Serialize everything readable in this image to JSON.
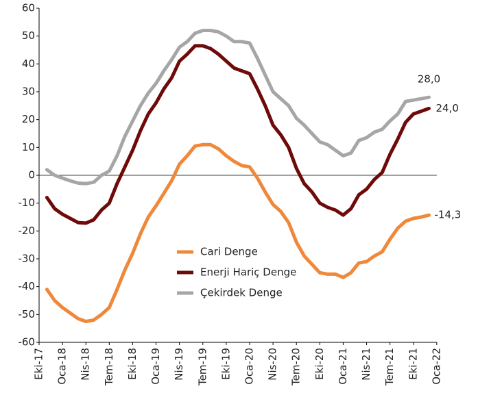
{
  "chart_data": {
    "type": "line",
    "categories": [
      "Eki-17",
      null,
      null,
      "Oca-18",
      null,
      null,
      "Nis-18",
      null,
      null,
      "Tem-18",
      null,
      null,
      "Eki-18",
      null,
      null,
      "Oca-19",
      null,
      null,
      "Nis-19",
      null,
      null,
      "Tem-19",
      null,
      null,
      "Eki-19",
      null,
      null,
      "Oca-20",
      null,
      null,
      "Nis-20",
      null,
      null,
      "Tem-20",
      null,
      null,
      "Eki-20",
      null,
      null,
      "Oca-21",
      null,
      null,
      "Nis-21",
      null,
      null,
      "Tem-21",
      null,
      null,
      "Eki-21",
      null,
      null,
      "Oca-22"
    ],
    "series": [
      {
        "name": "Cari Denge",
        "color": "#f0883a",
        "values": [
          null,
          -41,
          -45,
          -47.5,
          -49.5,
          -51.5,
          -52.5,
          -52,
          -50,
          -47.5,
          -41,
          -34,
          -28,
          -21,
          -15,
          -11,
          -6.5,
          -2,
          4,
          7,
          10.5,
          11,
          11,
          9.5,
          7,
          5,
          3.5,
          3,
          -1,
          -6,
          -10.5,
          -13,
          -17,
          -24,
          -29,
          -32,
          -35,
          -35.5,
          -35.5,
          -36.7,
          -35,
          -31.5,
          -31,
          -29,
          -27.5,
          -23,
          -19,
          -16.5,
          -15.5,
          -15,
          -14.3,
          null
        ],
        "value_labels": [
          null,
          null,
          null,
          null,
          null,
          null,
          null,
          null,
          null,
          null,
          null,
          null,
          null,
          null,
          null,
          null,
          null,
          null,
          null,
          null,
          null,
          null,
          null,
          null,
          null,
          null,
          null,
          null,
          null,
          null,
          null,
          null,
          null,
          null,
          null,
          null,
          null,
          null,
          null,
          null,
          null,
          null,
          null,
          null,
          null,
          null,
          null,
          null,
          null,
          null,
          "-14,3",
          null
        ]
      },
      {
        "name": "Enerji Hariç Denge",
        "color": "#6e0a0a",
        "values": [
          null,
          -8,
          -12,
          -14,
          -15.5,
          -17,
          -17.2,
          -16,
          -12.5,
          -10,
          -3,
          3,
          9,
          16,
          22,
          26,
          31,
          35,
          41,
          43.5,
          46.5,
          46.5,
          45.5,
          43.5,
          41,
          38.5,
          37.5,
          36.5,
          31,
          25,
          18,
          14.5,
          10,
          2.5,
          -3,
          -6,
          -10,
          -11.5,
          -12.5,
          -14.3,
          -12,
          -7,
          -5,
          -1.5,
          1,
          7.5,
          13,
          19,
          22,
          23,
          24,
          null
        ],
        "value_labels": [
          null,
          null,
          null,
          null,
          null,
          null,
          null,
          null,
          null,
          null,
          null,
          null,
          null,
          null,
          null,
          null,
          null,
          null,
          null,
          null,
          null,
          null,
          null,
          null,
          null,
          null,
          null,
          null,
          null,
          null,
          null,
          null,
          null,
          null,
          null,
          null,
          null,
          null,
          null,
          null,
          null,
          null,
          null,
          null,
          null,
          null,
          null,
          null,
          null,
          null,
          "24,0",
          null
        ]
      },
      {
        "name": "Çekirdek Denge",
        "color": "#a6a6a6",
        "values": [
          null,
          2,
          0,
          -1,
          -2,
          -2.8,
          -3,
          -2.5,
          0,
          1.5,
          7,
          14,
          19.5,
          25,
          29.5,
          33,
          37.5,
          41.5,
          46,
          48,
          51,
          52,
          52,
          51.5,
          50,
          48,
          48,
          47.5,
          42,
          36,
          30,
          27.5,
          25,
          20.5,
          18,
          15,
          12,
          11,
          9,
          7,
          8,
          12.5,
          13.5,
          15.5,
          16.5,
          19.5,
          22,
          26.5,
          27,
          27.5,
          28,
          null
        ],
        "value_labels": [
          null,
          null,
          null,
          null,
          null,
          null,
          null,
          null,
          null,
          null,
          null,
          null,
          null,
          null,
          null,
          null,
          null,
          null,
          null,
          null,
          null,
          null,
          null,
          null,
          null,
          null,
          null,
          null,
          null,
          null,
          null,
          null,
          null,
          null,
          null,
          null,
          null,
          null,
          null,
          null,
          null,
          null,
          null,
          null,
          null,
          null,
          null,
          null,
          null,
          null,
          "28,0",
          null
        ]
      }
    ],
    "ylim": [
      -60,
      60
    ],
    "yticks": [
      -60,
      -50,
      -40,
      -30,
      -20,
      -10,
      0,
      10,
      20,
      30,
      40,
      50,
      60
    ],
    "grid": false,
    "legend": "bottom-center"
  }
}
